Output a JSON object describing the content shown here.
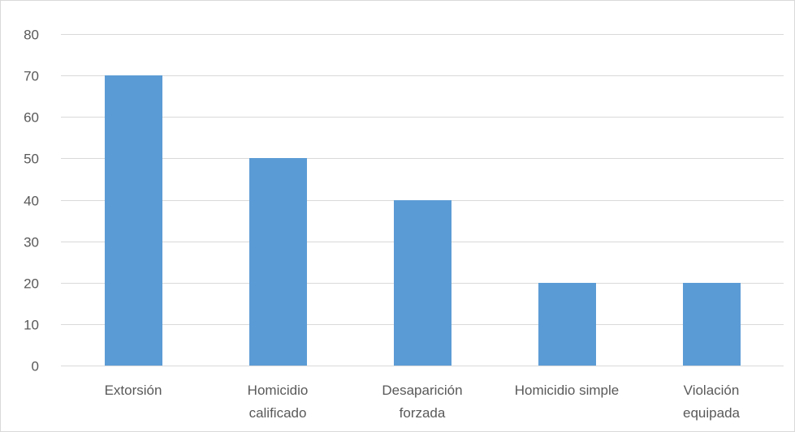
{
  "chart_data": {
    "type": "bar",
    "categories": [
      "Extorsión",
      "Homicidio calificado",
      "Desaparición forzada",
      "Homicidio simple",
      "Violación equipada"
    ],
    "category_lines": [
      [
        "Extorsión"
      ],
      [
        "Homicidio",
        "calificado"
      ],
      [
        "Desaparición",
        "forzada"
      ],
      [
        "Homicidio simple"
      ],
      [
        "Violación",
        "equipada"
      ]
    ],
    "values": [
      70,
      50,
      40,
      20,
      20
    ],
    "ylim": [
      0,
      80
    ],
    "yticks": [
      0,
      10,
      20,
      30,
      40,
      50,
      60,
      70,
      80
    ],
    "title": "",
    "xlabel": "",
    "ylabel": "",
    "grid": true,
    "legend": "none",
    "bar_color": "#5B9BD5",
    "grid_color": "#D9D9D9",
    "text_color": "#595959"
  }
}
